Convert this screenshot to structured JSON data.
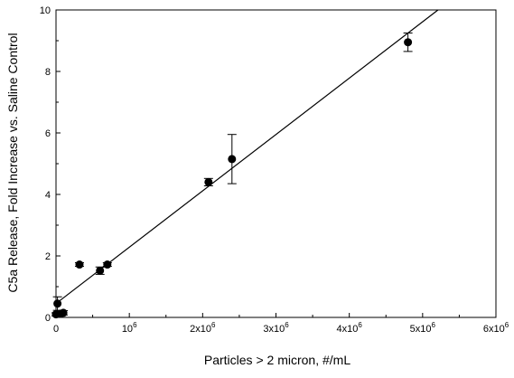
{
  "chart_data": {
    "type": "scatter",
    "xlabel": "Particles > 2 micron, #/mL",
    "ylabel": "C5a Release, Fold Increase vs. Saline Control",
    "xlim": [
      0,
      6000000
    ],
    "ylim": [
      0,
      10
    ],
    "x_ticks": [
      {
        "value": 0,
        "base": "0",
        "exp": ""
      },
      {
        "value": 1000000,
        "base": "10",
        "exp": "6"
      },
      {
        "value": 2000000,
        "base": "2x10",
        "exp": "6"
      },
      {
        "value": 3000000,
        "base": "3x10",
        "exp": "6"
      },
      {
        "value": 4000000,
        "base": "4x10",
        "exp": "6"
      },
      {
        "value": 5000000,
        "base": "5x10",
        "exp": "6"
      },
      {
        "value": 6000000,
        "base": "6x10",
        "exp": "6"
      }
    ],
    "y_ticks": [
      "0",
      "2",
      "4",
      "6",
      "8",
      "10"
    ],
    "points": [
      {
        "x": 0,
        "y": 0.1,
        "err": 0.05
      },
      {
        "x": 20000,
        "y": 0.45,
        "err": 0.22
      },
      {
        "x": 60000,
        "y": 0.12,
        "err": 0.05
      },
      {
        "x": 100000,
        "y": 0.15,
        "err": 0.07
      },
      {
        "x": 320000,
        "y": 1.72,
        "err": 0.06
      },
      {
        "x": 600000,
        "y": 1.52,
        "err": 0.12
      },
      {
        "x": 700000,
        "y": 1.72,
        "err": 0.06
      },
      {
        "x": 2080000,
        "y": 4.4,
        "err": 0.12
      },
      {
        "x": 2400000,
        "y": 5.15,
        "err": 0.8
      },
      {
        "x": 4800000,
        "y": 8.95,
        "err": 0.3
      }
    ],
    "fit_line": {
      "x": [
        0,
        5210000
      ],
      "y": [
        0.45,
        10
      ]
    },
    "grid": false,
    "legend": "none"
  }
}
